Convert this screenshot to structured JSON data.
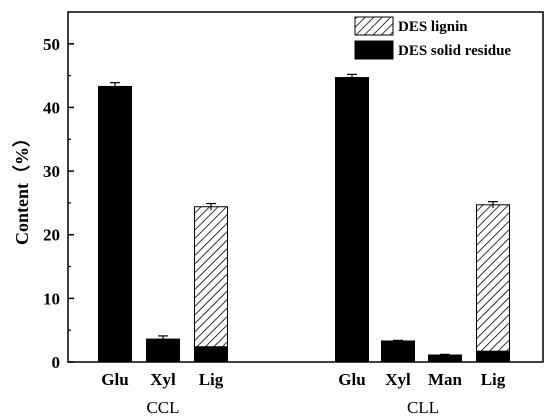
{
  "chart_data": {
    "type": "bar",
    "stacked": true,
    "ylabel": "Content（%）",
    "ylim": [
      0,
      55
    ],
    "yticks": [
      0,
      10,
      20,
      30,
      40,
      50
    ],
    "legend_position": "top-right",
    "grid": false,
    "groups": [
      {
        "name": "CCL",
        "categories": [
          "Glu",
          "Xyl",
          "Lig"
        ],
        "solid_residue": [
          43.3,
          3.6,
          2.4
        ],
        "lignin": [
          0,
          0,
          22.0
        ],
        "error": [
          0.6,
          0.5,
          0.5
        ]
      },
      {
        "name": "CLL",
        "categories": [
          "Glu",
          "Xyl",
          "Man",
          "Lig"
        ],
        "solid_residue": [
          44.7,
          3.3,
          1.1,
          1.7
        ],
        "lignin": [
          0,
          0,
          0,
          23.0
        ],
        "error": [
          0.5,
          0.1,
          0.1,
          0.5
        ]
      }
    ],
    "series": [
      {
        "name": "DES lignin",
        "key": "lignin",
        "pattern": "hatch"
      },
      {
        "name": "DES solid residue",
        "key": "solid_residue",
        "color": "#000000"
      }
    ]
  }
}
